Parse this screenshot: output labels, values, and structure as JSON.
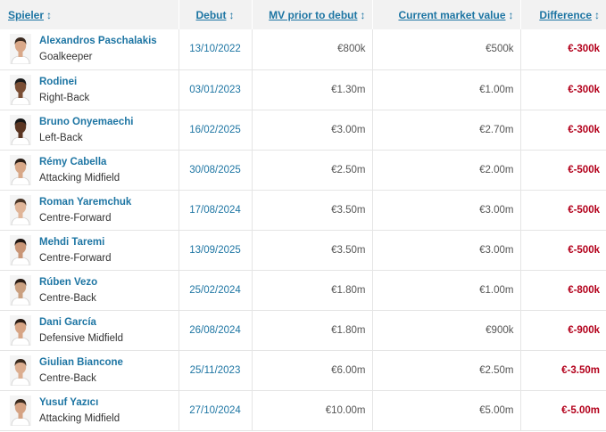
{
  "colors": {
    "link": "#1d75a3",
    "negative": "#b3001b",
    "header_bg": "#f2f2f2"
  },
  "headers": {
    "player": "Spieler",
    "debut": "Debut",
    "mv_prior": "MV prior to debut",
    "current_mv": "Current market value",
    "difference": "Difference",
    "sort_arrow": "↕"
  },
  "rows": [
    {
      "name": "Alexandros Paschalakis",
      "position": "Goalkeeper",
      "debut": "13/10/2022",
      "mv_prior": "€800k",
      "current_mv": "€500k",
      "difference": "€-300k",
      "skin": "#d9a889",
      "hair": "#3b2a20"
    },
    {
      "name": "Rodinei",
      "position": "Right-Back",
      "debut": "03/01/2023",
      "mv_prior": "€1.30m",
      "current_mv": "€1.00m",
      "difference": "€-300k",
      "skin": "#7a4e34",
      "hair": "#1a1a1a"
    },
    {
      "name": "Bruno Onyemaechi",
      "position": "Left-Back",
      "debut": "16/02/2025",
      "mv_prior": "€3.00m",
      "current_mv": "€2.70m",
      "difference": "€-300k",
      "skin": "#5a3522",
      "hair": "#151515"
    },
    {
      "name": "Rémy Cabella",
      "position": "Attacking Midfield",
      "debut": "30/08/2025",
      "mv_prior": "€2.50m",
      "current_mv": "€2.00m",
      "difference": "€-500k",
      "skin": "#d8a888",
      "hair": "#2b1e16"
    },
    {
      "name": "Roman Yaremchuk",
      "position": "Centre-Forward",
      "debut": "17/08/2024",
      "mv_prior": "€3.50m",
      "current_mv": "€3.00m",
      "difference": "€-500k",
      "skin": "#e0b598",
      "hair": "#4a3526"
    },
    {
      "name": "Mehdi Taremi",
      "position": "Centre-Forward",
      "debut": "13/09/2025",
      "mv_prior": "€3.50m",
      "current_mv": "€3.00m",
      "difference": "€-500k",
      "skin": "#c99677",
      "hair": "#1f1612"
    },
    {
      "name": "Rúben Vezo",
      "position": "Centre-Back",
      "debut": "25/02/2024",
      "mv_prior": "€1.80m",
      "current_mv": "€1.00m",
      "difference": "€-800k",
      "skin": "#caa080",
      "hair": "#2a1c14"
    },
    {
      "name": "Dani García",
      "position": "Defensive Midfield",
      "debut": "26/08/2024",
      "mv_prior": "€1.80m",
      "current_mv": "€900k",
      "difference": "€-900k",
      "skin": "#d7a585",
      "hair": "#2a1c14"
    },
    {
      "name": "Giulian Biancone",
      "position": "Centre-Back",
      "debut": "25/11/2023",
      "mv_prior": "€6.00m",
      "current_mv": "€2.50m",
      "difference": "€-3.50m",
      "skin": "#dcae90",
      "hair": "#3a2a1e"
    },
    {
      "name": "Yusuf Yazıcı",
      "position": "Attacking Midfield",
      "debut": "27/10/2024",
      "mv_prior": "€10.00m",
      "current_mv": "€5.00m",
      "difference": "€-5.00m",
      "skin": "#d5a384",
      "hair": "#3a2a1e"
    }
  ]
}
